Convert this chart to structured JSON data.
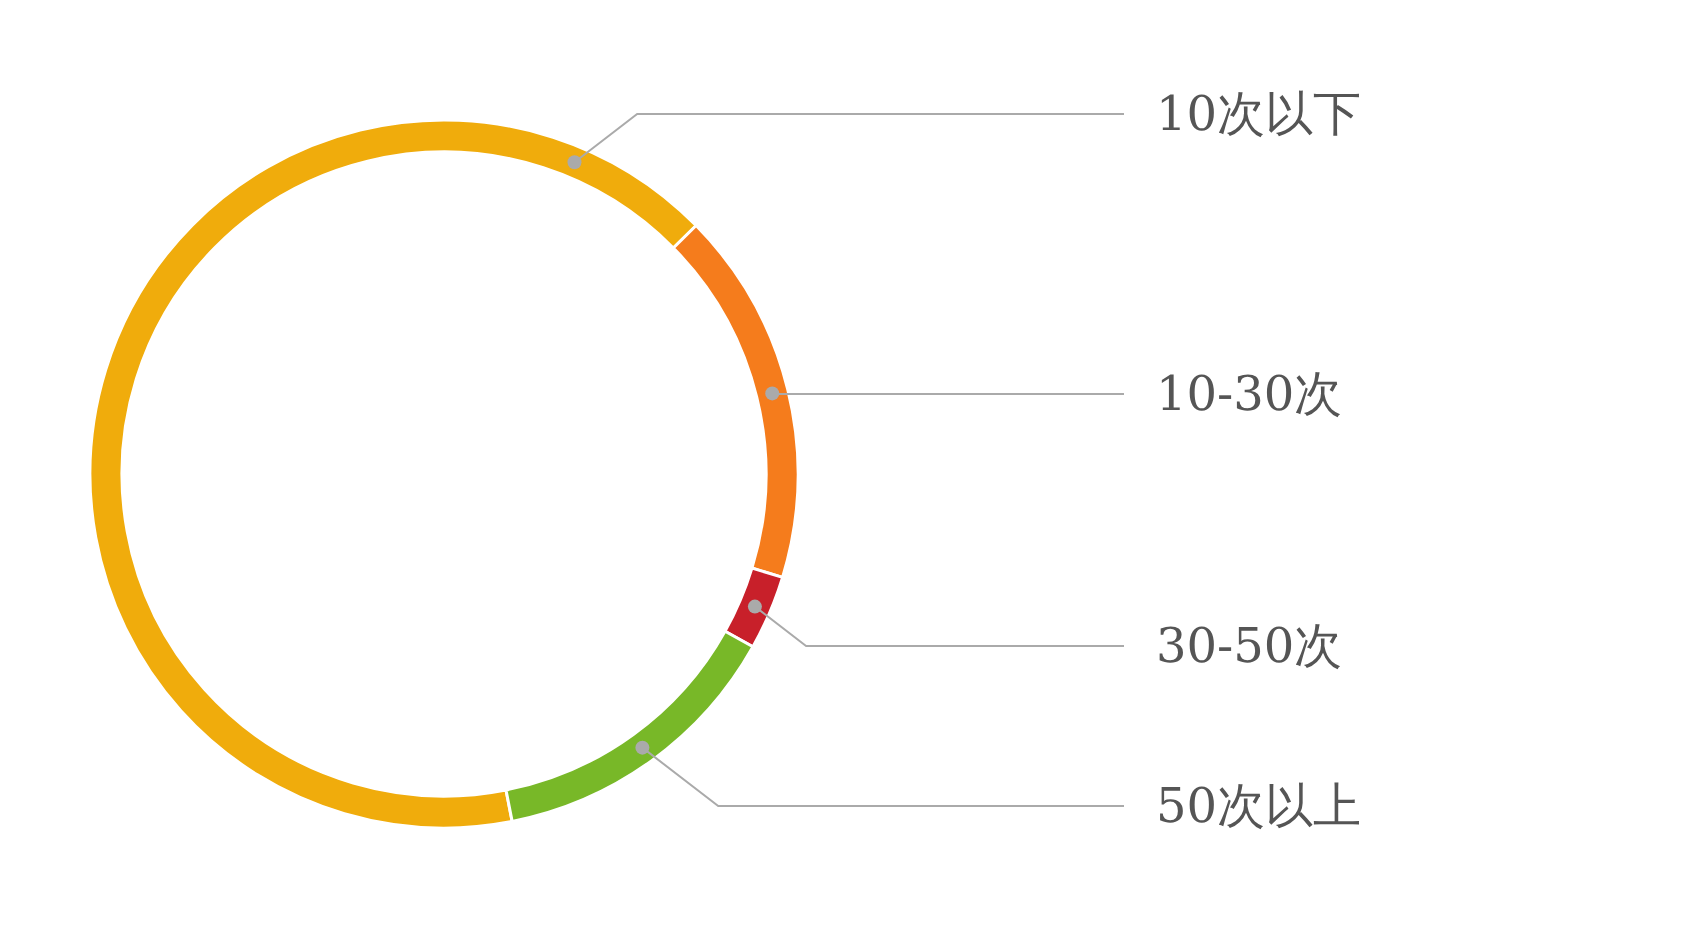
{
  "chart_data": {
    "type": "donut",
    "categories": [
      "10次以下",
      "10-30次",
      "30-50次",
      "50次以上"
    ],
    "values": [
      65.7,
      17.1,
      3.4,
      13.8
    ],
    "colors": [
      "#f0ac0c",
      "#f57c1c",
      "#c8202a",
      "#78b828"
    ]
  }
}
